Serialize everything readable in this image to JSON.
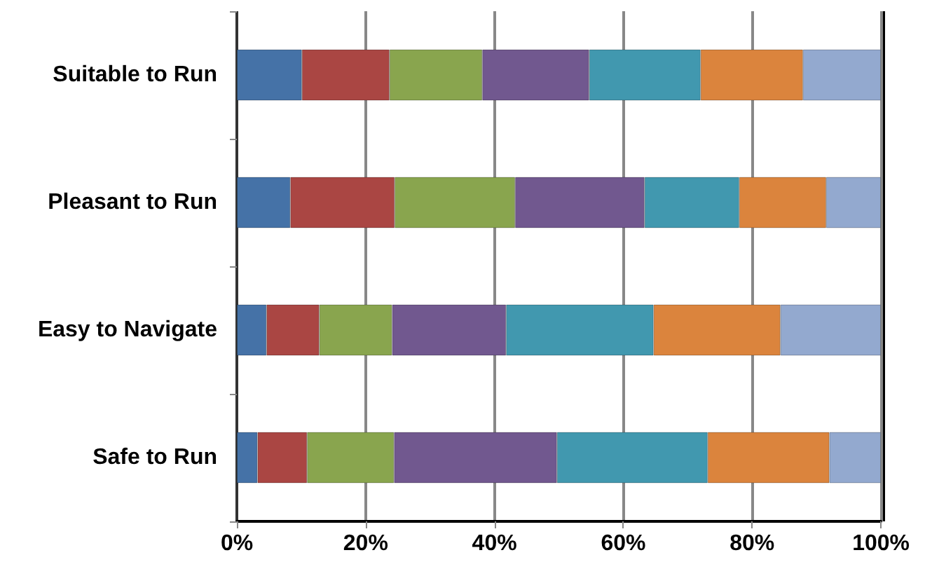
{
  "chart_data": {
    "type": "bar",
    "orientation": "horizontal",
    "stacked": true,
    "categories": [
      "Suitable to Run",
      "Pleasant to Run",
      "Easy to Navigate",
      "Safe to Run"
    ],
    "series": [
      {
        "color": "#4572a7",
        "values": [
          10.1,
          8.3,
          4.6,
          3.2
        ]
      },
      {
        "color": "#aa4643",
        "values": [
          13.6,
          16.2,
          8.2,
          7.7
        ]
      },
      {
        "color": "#89a54e",
        "values": [
          14.4,
          18.7,
          11.3,
          13.5
        ]
      },
      {
        "color": "#71588f",
        "values": [
          16.6,
          20.1,
          17.7,
          25.3
        ]
      },
      {
        "color": "#4198af",
        "values": [
          17.3,
          14.7,
          22.9,
          23.4
        ]
      },
      {
        "color": "#db843d",
        "values": [
          15.9,
          13.5,
          19.7,
          18.9
        ]
      },
      {
        "color": "#93a9cf",
        "values": [
          12.1,
          8.5,
          15.6,
          8.0
        ]
      }
    ],
    "xlim": [
      0,
      100
    ],
    "xticks": [
      {
        "value": 0,
        "label": "0%"
      },
      {
        "value": 20,
        "label": "20%"
      },
      {
        "value": 40,
        "label": "40%"
      },
      {
        "value": 60,
        "label": "60%"
      },
      {
        "value": 80,
        "label": "80%"
      },
      {
        "value": 100,
        "label": "100%"
      }
    ],
    "grid": "x"
  }
}
